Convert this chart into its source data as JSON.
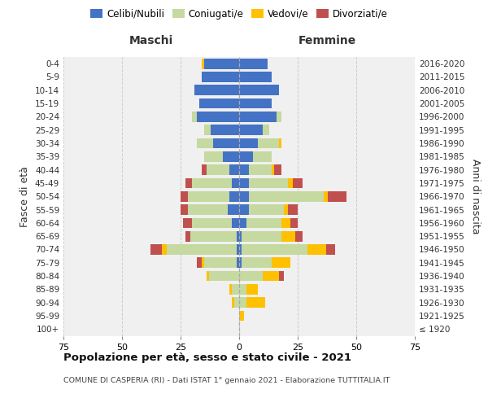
{
  "age_groups": [
    "100+",
    "95-99",
    "90-94",
    "85-89",
    "80-84",
    "75-79",
    "70-74",
    "65-69",
    "60-64",
    "55-59",
    "50-54",
    "45-49",
    "40-44",
    "35-39",
    "30-34",
    "25-29",
    "20-24",
    "15-19",
    "10-14",
    "5-9",
    "0-4"
  ],
  "birth_years": [
    "≤ 1920",
    "1921-1925",
    "1926-1930",
    "1931-1935",
    "1936-1940",
    "1941-1945",
    "1946-1950",
    "1951-1955",
    "1956-1960",
    "1961-1965",
    "1966-1970",
    "1971-1975",
    "1976-1980",
    "1981-1985",
    "1986-1990",
    "1991-1995",
    "1996-2000",
    "2001-2005",
    "2006-2010",
    "2011-2015",
    "2016-2020"
  ],
  "maschi_celibi": [
    0,
    0,
    0,
    0,
    0,
    1,
    1,
    1,
    3,
    5,
    4,
    3,
    4,
    7,
    11,
    12,
    18,
    17,
    19,
    16,
    15
  ],
  "maschi_coniugati": [
    0,
    0,
    2,
    3,
    13,
    14,
    30,
    20,
    17,
    17,
    18,
    17,
    10,
    8,
    7,
    3,
    2,
    0,
    0,
    0,
    0
  ],
  "maschi_vedovi": [
    0,
    0,
    1,
    1,
    1,
    1,
    2,
    0,
    0,
    0,
    0,
    0,
    0,
    0,
    0,
    0,
    0,
    0,
    0,
    0,
    1
  ],
  "maschi_divorziati": [
    0,
    0,
    0,
    0,
    0,
    2,
    5,
    2,
    4,
    3,
    3,
    3,
    2,
    0,
    0,
    0,
    0,
    0,
    0,
    0,
    0
  ],
  "femmine_nubili": [
    0,
    0,
    0,
    0,
    0,
    1,
    1,
    1,
    3,
    4,
    4,
    4,
    4,
    6,
    8,
    10,
    16,
    14,
    17,
    14,
    12
  ],
  "femmine_coniugate": [
    0,
    0,
    3,
    3,
    10,
    13,
    28,
    17,
    15,
    15,
    32,
    17,
    10,
    8,
    9,
    3,
    2,
    0,
    0,
    0,
    0
  ],
  "femmine_vedove": [
    0,
    2,
    8,
    5,
    7,
    8,
    8,
    6,
    4,
    2,
    2,
    2,
    1,
    0,
    1,
    0,
    0,
    0,
    0,
    0,
    0
  ],
  "femmine_divorziate": [
    0,
    0,
    0,
    0,
    2,
    0,
    4,
    3,
    3,
    4,
    8,
    4,
    3,
    0,
    0,
    0,
    0,
    0,
    0,
    0,
    0
  ],
  "color_celibi": "#4472c4",
  "color_coniugati": "#c5d9a0",
  "color_vedovi": "#ffc000",
  "color_divorziati": "#c0504d",
  "bg_color": "#f0f0f0",
  "grid_color": "#cccccc",
  "xlim": 75,
  "title": "Popolazione per età, sesso e stato civile - 2021",
  "subtitle": "COMUNE DI CASPERIA (RI) - Dati ISTAT 1° gennaio 2021 - Elaborazione TUTTITALIA.IT",
  "ylabel_left": "Fasce di età",
  "ylabel_right": "Anni di nascita",
  "header_maschi": "Maschi",
  "header_femmine": "Femmine",
  "legend_labels": [
    "Celibi/Nubili",
    "Coniugati/e",
    "Vedovi/e",
    "Divorziati/e"
  ]
}
